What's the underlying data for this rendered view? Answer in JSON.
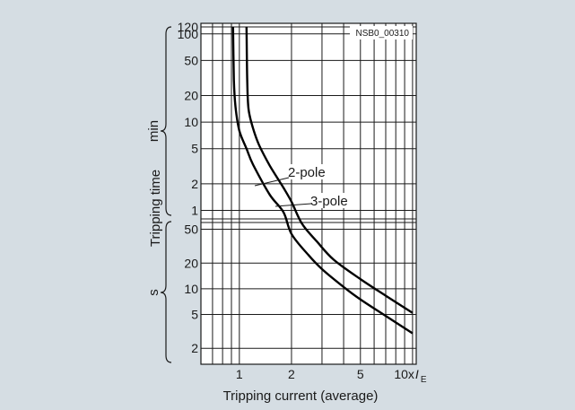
{
  "chart_data": {
    "type": "line",
    "title": "",
    "figure_id": "NSB0_00310",
    "xlabel": "Tripping current (average)",
    "ylabel": "Tripping time",
    "x_scale": "log",
    "xlim": [
      0.6,
      10.5
    ],
    "x_ticks": [
      {
        "v": 1,
        "label": "1"
      },
      {
        "v": 2,
        "label": "2"
      },
      {
        "v": 5,
        "label": "5"
      },
      {
        "v": 10,
        "label": "10x"
      }
    ],
    "x_unit_symbol": "I",
    "x_unit_subscript": "E",
    "y_scale": "log",
    "y_sections": [
      {
        "unit": "min",
        "range": [
          0.8,
          120
        ],
        "ticks": [
          {
            "v": 1,
            "label": "1"
          },
          {
            "v": 2,
            "label": "2"
          },
          {
            "v": 5,
            "label": "5"
          },
          {
            "v": 10,
            "label": "10"
          },
          {
            "v": 20,
            "label": "20"
          },
          {
            "v": 50,
            "label": "50"
          },
          {
            "v": 100,
            "label": "100"
          },
          {
            "v": 120,
            "label": "120"
          }
        ]
      },
      {
        "unit": "s",
        "range": [
          1.3,
          60
        ],
        "ticks": [
          {
            "v": 2,
            "label": "2"
          },
          {
            "v": 5,
            "label": "5"
          },
          {
            "v": 10,
            "label": "10"
          },
          {
            "v": 20,
            "label": "20"
          },
          {
            "v": 50,
            "label": "50"
          }
        ]
      }
    ],
    "grid": true,
    "series": [
      {
        "name": "2-pole",
        "points": [
          {
            "x": 0.92,
            "section": "min",
            "y": 120
          },
          {
            "x": 0.93,
            "section": "min",
            "y": 30
          },
          {
            "x": 0.95,
            "section": "min",
            "y": 15
          },
          {
            "x": 1.0,
            "section": "min",
            "y": 8
          },
          {
            "x": 1.1,
            "section": "min",
            "y": 5
          },
          {
            "x": 1.2,
            "section": "min",
            "y": 3.3
          },
          {
            "x": 1.5,
            "section": "min",
            "y": 1.5
          },
          {
            "x": 1.8,
            "section": "min",
            "y": 0.95
          },
          {
            "x": 2.0,
            "section": "s",
            "y": 44
          },
          {
            "x": 2.5,
            "section": "s",
            "y": 25
          },
          {
            "x": 3.0,
            "section": "s",
            "y": 17
          },
          {
            "x": 4.0,
            "section": "s",
            "y": 10.5
          },
          {
            "x": 5.0,
            "section": "s",
            "y": 7.5
          },
          {
            "x": 7.0,
            "section": "s",
            "y": 4.8
          },
          {
            "x": 10.0,
            "section": "s",
            "y": 3.0
          }
        ]
      },
      {
        "name": "3-pole",
        "points": [
          {
            "x": 1.1,
            "section": "min",
            "y": 120
          },
          {
            "x": 1.11,
            "section": "min",
            "y": 30
          },
          {
            "x": 1.13,
            "section": "min",
            "y": 14
          },
          {
            "x": 1.2,
            "section": "min",
            "y": 8.5
          },
          {
            "x": 1.3,
            "section": "min",
            "y": 5.5
          },
          {
            "x": 1.5,
            "section": "min",
            "y": 3.2
          },
          {
            "x": 1.8,
            "section": "min",
            "y": 1.8
          },
          {
            "x": 2.0,
            "section": "min",
            "y": 1.25
          },
          {
            "x": 2.3,
            "section": "s",
            "y": 58
          },
          {
            "x": 2.8,
            "section": "s",
            "y": 36
          },
          {
            "x": 3.5,
            "section": "s",
            "y": 22
          },
          {
            "x": 5.0,
            "section": "s",
            "y": 13
          },
          {
            "x": 7.0,
            "section": "s",
            "y": 8.3
          },
          {
            "x": 10.0,
            "section": "s",
            "y": 5.2
          }
        ]
      }
    ],
    "annotations": [
      {
        "text": "2-pole",
        "series": "2-pole"
      },
      {
        "text": "3-pole",
        "series": "3-pole"
      }
    ]
  }
}
